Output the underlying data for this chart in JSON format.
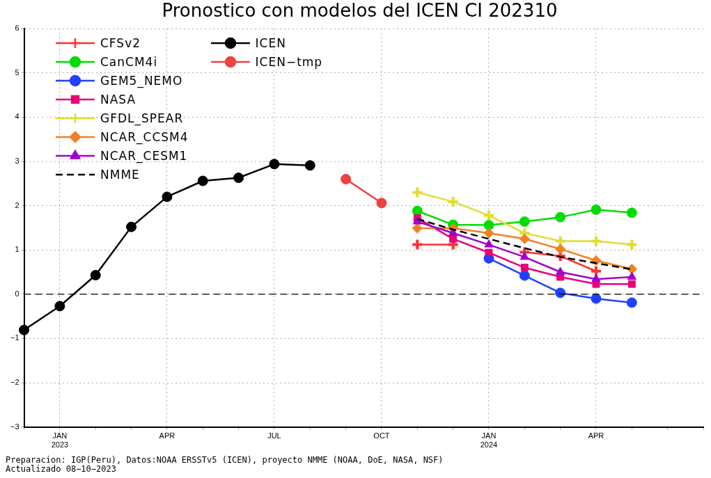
{
  "chart_data": {
    "type": "line",
    "title": "Pronostico con modelos del ICEN CI 202310",
    "categories": [
      null,
      "JAN 2023",
      null,
      null,
      "APR",
      null,
      null,
      "JUL",
      null,
      null,
      "OCT",
      null,
      null,
      "JAN 2024",
      null,
      null,
      "APR",
      null,
      null
    ],
    "ylim": [
      -3,
      6
    ],
    "yticks": [
      -3,
      -2,
      -1,
      0,
      1,
      2,
      3,
      4,
      5,
      6
    ],
    "grid": true,
    "legend": "top left",
    "ref_lines": [
      {
        "axis": "y",
        "value": 0,
        "color": "#000000",
        "line_style": "dashed"
      }
    ],
    "series": [
      {
        "name": "CFSv2",
        "color": "#ff3030",
        "marker": "cross",
        "values": [
          null,
          null,
          null,
          null,
          null,
          null,
          null,
          null,
          null,
          null,
          null,
          1.12,
          1.12,
          null,
          0.95,
          0.86,
          0.52,
          null,
          null
        ]
      },
      {
        "name": "CanCM4i",
        "color": "#00dd00",
        "marker": "circle",
        "values": [
          null,
          null,
          null,
          null,
          null,
          null,
          null,
          null,
          null,
          null,
          null,
          1.88,
          1.57,
          1.56,
          1.64,
          1.74,
          1.91,
          1.84,
          null
        ]
      },
      {
        "name": "GEM5_NEMO",
        "color": "#2040ff",
        "marker": "circle",
        "values": [
          null,
          null,
          null,
          null,
          null,
          null,
          null,
          null,
          null,
          null,
          null,
          null,
          null,
          0.81,
          0.42,
          0.03,
          -0.1,
          -0.19,
          null
        ]
      },
      {
        "name": "NASA",
        "color": "#e8007a",
        "marker": "square",
        "values": [
          null,
          null,
          null,
          null,
          null,
          null,
          null,
          null,
          null,
          null,
          null,
          1.72,
          1.25,
          0.94,
          0.6,
          0.39,
          0.23,
          0.23,
          null
        ]
      },
      {
        "name": "GFDL_SPEAR",
        "color": "#e0dd30",
        "marker": "cross",
        "values": [
          null,
          null,
          null,
          null,
          null,
          null,
          null,
          null,
          null,
          null,
          null,
          2.3,
          2.09,
          1.78,
          1.38,
          1.2,
          1.2,
          1.12,
          null
        ]
      },
      {
        "name": "NCAR_CCSM4",
        "color": "#f08020",
        "marker": "diamond",
        "values": [
          null,
          null,
          null,
          null,
          null,
          null,
          null,
          null,
          null,
          null,
          null,
          1.49,
          1.49,
          1.38,
          1.25,
          1.02,
          0.76,
          0.57,
          null
        ]
      },
      {
        "name": "NCAR_CESM1",
        "color": "#a000d0",
        "marker": "triangle",
        "values": [
          null,
          null,
          null,
          null,
          null,
          null,
          null,
          null,
          null,
          null,
          null,
          1.64,
          1.38,
          1.12,
          0.84,
          0.5,
          0.34,
          0.39,
          null
        ]
      },
      {
        "name": "NMME",
        "color": "#000000",
        "marker": "none",
        "line_style": "dashed",
        "values": [
          null,
          null,
          null,
          null,
          null,
          null,
          null,
          null,
          null,
          null,
          null,
          1.7,
          1.46,
          1.25,
          1.04,
          0.84,
          0.7,
          0.56,
          null
        ]
      },
      {
        "name": "ICEN",
        "color": "#000000",
        "marker": "circle",
        "values": [
          -0.81,
          -0.27,
          0.43,
          1.52,
          2.2,
          2.56,
          2.63,
          2.94,
          2.91,
          null,
          null,
          null,
          null,
          null,
          null,
          null,
          null,
          null,
          null
        ]
      },
      {
        "name": "ICEN−tmp",
        "color": "#f04040",
        "marker": "circle",
        "values": [
          null,
          null,
          null,
          null,
          null,
          null,
          null,
          null,
          null,
          2.6,
          2.06,
          null,
          null,
          null,
          null,
          null,
          null,
          null,
          null
        ]
      }
    ],
    "annotations": [
      "Preparacion: IGP(Peru), Datos:NOAA ERSSTv5 (ICEN), proyecto  NMME (NOAA, DoE, NASA, NSF)",
      "Actualizado 08−10−2023"
    ]
  }
}
